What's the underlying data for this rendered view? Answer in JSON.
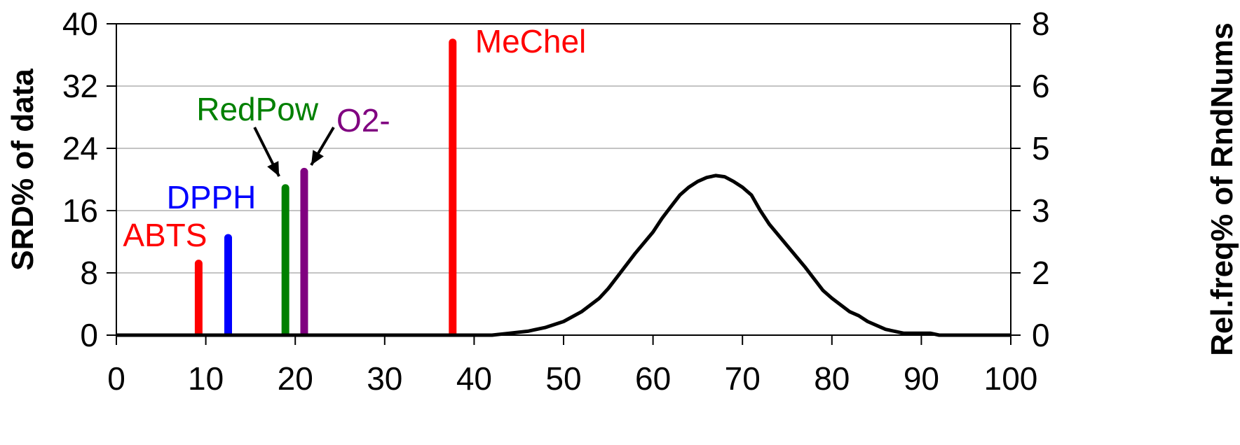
{
  "chart_data": {
    "type": "bar",
    "xlim": [
      0,
      100
    ],
    "x_ticks": [
      "0",
      "10",
      "20",
      "30",
      "40",
      "50",
      "60",
      "70",
      "80",
      "90",
      "100"
    ],
    "y_left": {
      "label": "SRD% of data",
      "ylim": [
        0,
        40
      ],
      "ticks": [
        "0",
        "8",
        "16",
        "24",
        "32",
        "40"
      ]
    },
    "y_right": {
      "label": "Rel.freq% of RndNums",
      "ylim": [
        0,
        8
      ],
      "ticks": [
        "0",
        "2",
        "3",
        "5",
        "6",
        "8"
      ]
    },
    "grid": true,
    "bars": [
      {
        "name": "ABTS",
        "x": 9.2,
        "value": 9.2,
        "color": "#ff0000"
      },
      {
        "name": "DPPH",
        "x": 12.5,
        "value": 12.5,
        "color": "#0000ff"
      },
      {
        "name": "RedPow",
        "x": 18.9,
        "value": 18.9,
        "color": "#008000"
      },
      {
        "name": "O2-",
        "x": 21.0,
        "value": 21.0,
        "color": "#800080"
      },
      {
        "name": "MeChel",
        "x": 37.6,
        "value": 37.6,
        "color": "#ff0000"
      }
    ],
    "distribution": {
      "axis": "right",
      "color": "#000000",
      "points": [
        [
          0,
          0
        ],
        [
          40,
          0
        ],
        [
          42,
          0
        ],
        [
          44,
          0.05
        ],
        [
          46,
          0.1
        ],
        [
          48,
          0.2
        ],
        [
          50,
          0.35
        ],
        [
          52,
          0.6
        ],
        [
          54,
          0.95
        ],
        [
          55,
          1.2
        ],
        [
          56,
          1.5
        ],
        [
          58,
          2.1
        ],
        [
          60,
          2.65
        ],
        [
          61,
          3.0
        ],
        [
          62,
          3.3
        ],
        [
          63,
          3.6
        ],
        [
          64,
          3.8
        ],
        [
          65,
          3.95
        ],
        [
          66,
          4.05
        ],
        [
          67,
          4.1
        ],
        [
          68,
          4.07
        ],
        [
          69,
          3.95
        ],
        [
          70,
          3.8
        ],
        [
          71,
          3.6
        ],
        [
          72,
          3.2
        ],
        [
          73,
          2.85
        ],
        [
          75,
          2.3
        ],
        [
          77,
          1.75
        ],
        [
          79,
          1.15
        ],
        [
          80,
          0.95
        ],
        [
          82,
          0.6
        ],
        [
          83,
          0.5
        ],
        [
          84,
          0.35
        ],
        [
          86,
          0.15
        ],
        [
          88,
          0.05
        ],
        [
          91,
          0.05
        ],
        [
          92,
          0
        ],
        [
          100,
          0
        ]
      ]
    }
  }
}
